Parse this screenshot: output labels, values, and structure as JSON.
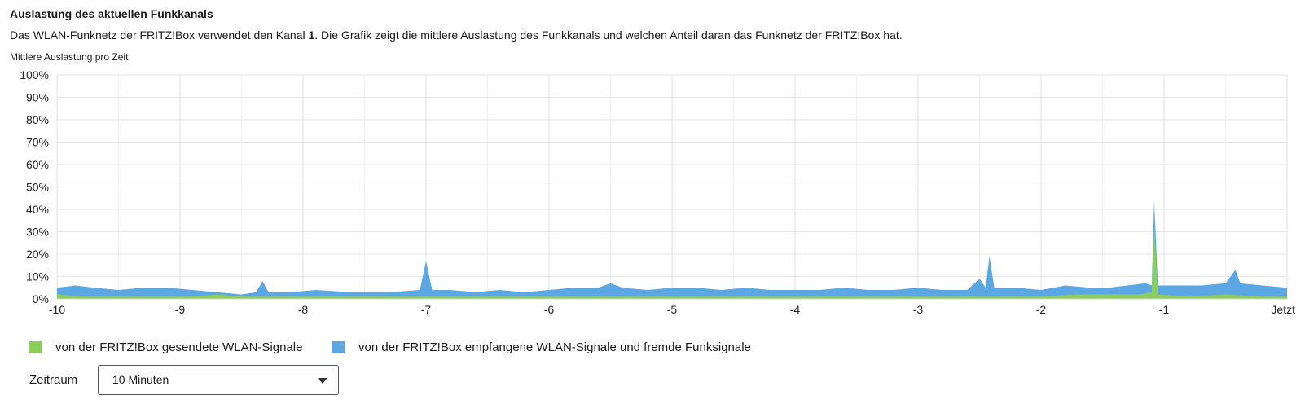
{
  "section": {
    "title": "Auslastung des aktuellen Funkkanals",
    "description_before": "Das WLAN-Funknetz der FRITZ!Box verwendet den Kanal ",
    "channel": "1",
    "description_after": ". Die Grafik zeigt die mittlere Auslastung des Funkkanals und welchen Anteil daran das Funknetz der FRITZ!Box hat."
  },
  "chart_data": {
    "type": "area",
    "title": "Mittlere Auslastung pro Zeit",
    "xlabel": "",
    "ylabel": "",
    "xlim": [
      -10,
      0
    ],
    "ylim": [
      0,
      100
    ],
    "y_ticks": [
      0,
      10,
      20,
      30,
      40,
      50,
      60,
      70,
      80,
      90,
      100
    ],
    "y_tick_labels": [
      "0%",
      "10%",
      "20%",
      "30%",
      "40%",
      "50%",
      "60%",
      "70%",
      "80%",
      "90%",
      "100%"
    ],
    "x_ticks": [
      -10,
      -9,
      -8,
      -7,
      -6,
      -5,
      -4,
      -3,
      -2,
      -1,
      0
    ],
    "x_tick_labels": [
      "-10",
      "-9",
      "-8",
      "-7",
      "-6",
      "-5",
      "-4",
      "-3",
      "-2",
      "-1",
      "Jetzt"
    ],
    "grid": true,
    "legend_position": "bottom-left",
    "colors": {
      "sent": "#8cce5c",
      "received": "#5aa7e4",
      "grid": "#e6e6e6",
      "axis": "#d6d6d6"
    },
    "series": [
      {
        "name": "von der FRITZ!Box empfangene WLAN-Signale und fremde Funksignale",
        "color": "#5aa7e4",
        "points": [
          [
            -10,
            5
          ],
          [
            -9.85,
            6
          ],
          [
            -9.7,
            5
          ],
          [
            -9.5,
            4
          ],
          [
            -9.3,
            5
          ],
          [
            -9.1,
            5
          ],
          [
            -8.9,
            4
          ],
          [
            -8.7,
            3
          ],
          [
            -8.5,
            2
          ],
          [
            -8.38,
            3
          ],
          [
            -8.33,
            8
          ],
          [
            -8.28,
            3
          ],
          [
            -8.1,
            3
          ],
          [
            -7.9,
            4
          ],
          [
            -7.6,
            3
          ],
          [
            -7.3,
            3
          ],
          [
            -7.05,
            4
          ],
          [
            -7.0,
            17
          ],
          [
            -6.95,
            4
          ],
          [
            -6.8,
            4
          ],
          [
            -6.6,
            3
          ],
          [
            -6.4,
            4
          ],
          [
            -6.2,
            3
          ],
          [
            -6.0,
            4
          ],
          [
            -5.8,
            5
          ],
          [
            -5.6,
            5
          ],
          [
            -5.5,
            7
          ],
          [
            -5.4,
            5
          ],
          [
            -5.2,
            4
          ],
          [
            -5.0,
            5
          ],
          [
            -4.8,
            5
          ],
          [
            -4.6,
            4
          ],
          [
            -4.4,
            5
          ],
          [
            -4.2,
            4
          ],
          [
            -4.0,
            4
          ],
          [
            -3.8,
            4
          ],
          [
            -3.6,
            5
          ],
          [
            -3.4,
            4
          ],
          [
            -3.2,
            4
          ],
          [
            -3.0,
            5
          ],
          [
            -2.8,
            4
          ],
          [
            -2.6,
            4
          ],
          [
            -2.5,
            9
          ],
          [
            -2.45,
            5
          ],
          [
            -2.42,
            19
          ],
          [
            -2.38,
            5
          ],
          [
            -2.2,
            5
          ],
          [
            -2.0,
            4
          ],
          [
            -1.8,
            6
          ],
          [
            -1.6,
            5
          ],
          [
            -1.45,
            5
          ],
          [
            -1.3,
            6
          ],
          [
            -1.15,
            7
          ],
          [
            -1.1,
            6
          ],
          [
            -1.08,
            44
          ],
          [
            -1.05,
            6
          ],
          [
            -0.9,
            6
          ],
          [
            -0.7,
            6
          ],
          [
            -0.5,
            7
          ],
          [
            -0.42,
            13
          ],
          [
            -0.38,
            7
          ],
          [
            -0.2,
            6
          ],
          [
            0,
            5
          ]
        ]
      },
      {
        "name": "von der FRITZ!Box gesendete WLAN-Signale",
        "color": "#8cce5c",
        "points": [
          [
            -10,
            2
          ],
          [
            -9.8,
            1
          ],
          [
            -9.5,
            1
          ],
          [
            -9.2,
            1
          ],
          [
            -8.9,
            1
          ],
          [
            -8.7,
            2
          ],
          [
            -8.5,
            1
          ],
          [
            -8.0,
            1
          ],
          [
            -7.5,
            1
          ],
          [
            -7.0,
            1
          ],
          [
            -6.5,
            1
          ],
          [
            -6.0,
            1
          ],
          [
            -5.5,
            1
          ],
          [
            -5.0,
            1
          ],
          [
            -4.5,
            1
          ],
          [
            -4.0,
            1
          ],
          [
            -3.5,
            1
          ],
          [
            -3.0,
            1
          ],
          [
            -2.5,
            1
          ],
          [
            -2.0,
            1
          ],
          [
            -1.7,
            2
          ],
          [
            -1.4,
            2
          ],
          [
            -1.2,
            2
          ],
          [
            -1.1,
            3
          ],
          [
            -1.08,
            32
          ],
          [
            -1.05,
            2
          ],
          [
            -0.8,
            1
          ],
          [
            -0.5,
            2
          ],
          [
            -0.2,
            1
          ],
          [
            0,
            1
          ]
        ]
      }
    ]
  },
  "legend": {
    "sent": "von der FRITZ!Box gesendete WLAN-Signale",
    "received": "von der FRITZ!Box empfangene WLAN-Signale und fremde Funksignale"
  },
  "period": {
    "label": "Zeitraum",
    "value": "10 Minuten"
  }
}
